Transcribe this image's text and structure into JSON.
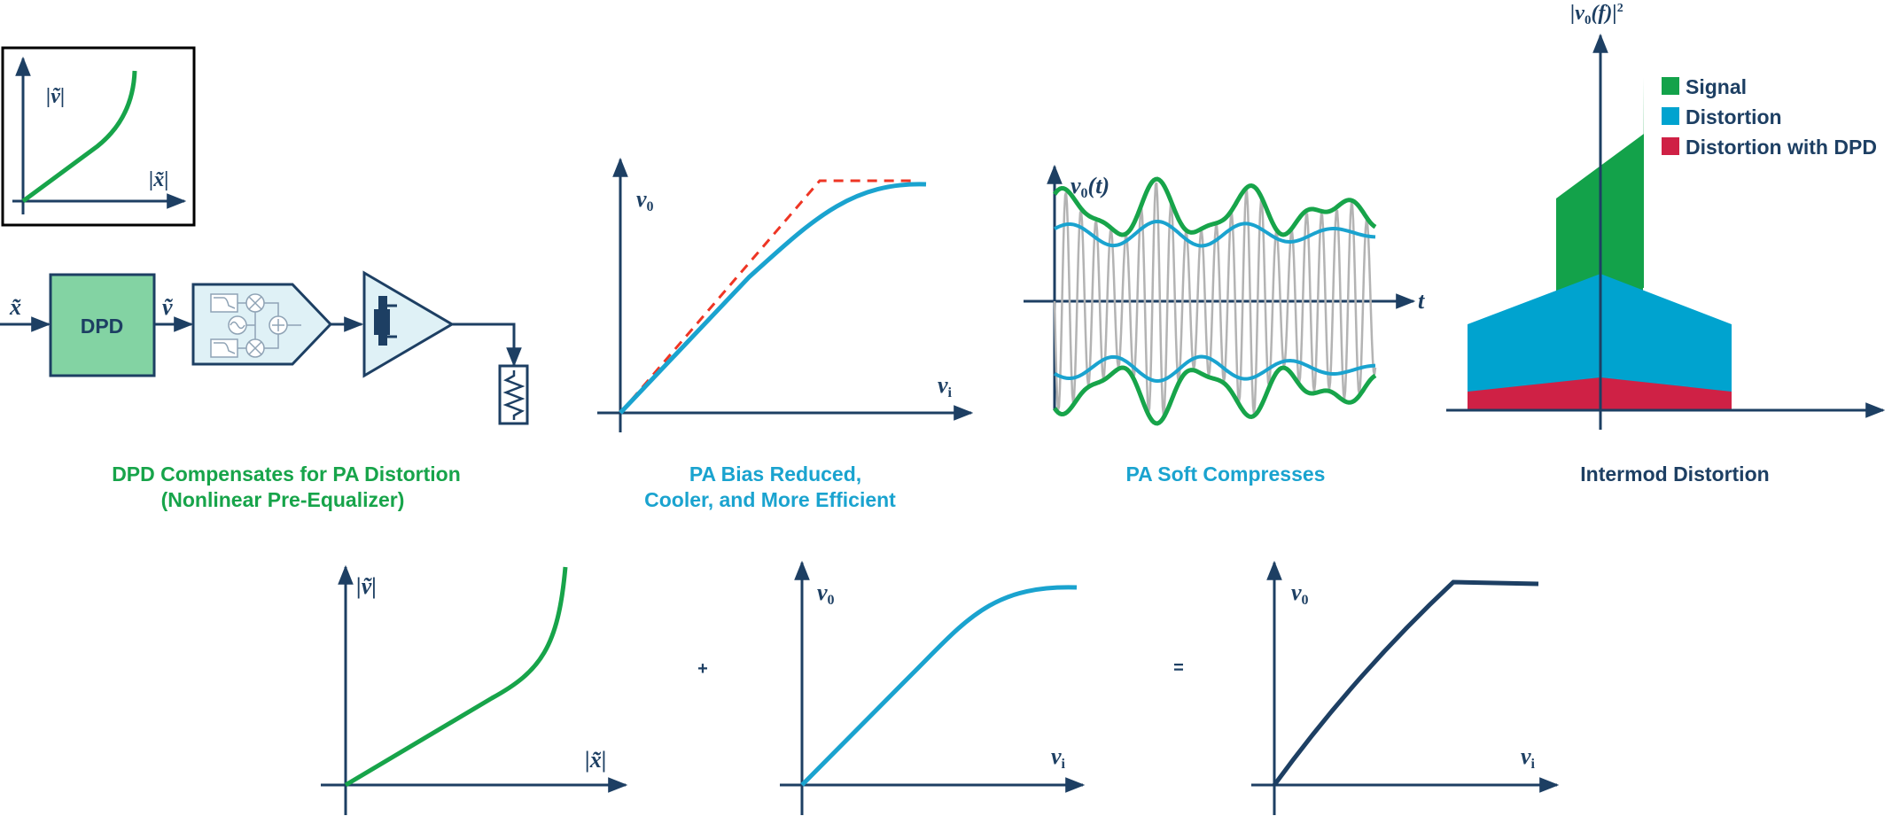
{
  "colors": {
    "navy": "#1d3f63",
    "green": "#17a44a",
    "blue": "#1aa3cf",
    "red_dashed": "#ee3524",
    "signal": "#13a24a",
    "distortion": "#00a3cf",
    "distortion_dpd": "#cf2145",
    "dpd_block": "#83d3a3",
    "light_block": "#dff1f6",
    "gray_wave": "#b3b3b3"
  },
  "inset": {
    "y_label": "|ṽ|",
    "x_label": "|x̃|"
  },
  "block_diagram": {
    "input_label": "x̃",
    "dpd_label": "DPD",
    "output_label": "ṽ",
    "icons": [
      "modulator-icon",
      "amplifier-icon",
      "resistor-icon"
    ]
  },
  "captions": {
    "dpd_line1": "DPD Compensates for PA Distortion",
    "dpd_line2": "(Nonlinear Pre-Equalizer)",
    "bias_line1": "PA Bias Reduced,",
    "bias_line2": "Cooler, and More Efficient",
    "soft": "PA Soft Compresses",
    "intermod": "Intermod Distortion"
  },
  "pa_transfer": {
    "y_label": "v",
    "y_sub": "0",
    "x_label": "v",
    "x_sub": "i"
  },
  "time_plot": {
    "y_label": "v",
    "y_sub": "0",
    "y_arg": "(t)",
    "x_label": "t"
  },
  "spectrum": {
    "y_label": "|v",
    "y_sub": "0",
    "y_arg": "(f)|",
    "y_sup": "2",
    "legend": [
      {
        "label": "Signal",
        "color": "#13a24a"
      },
      {
        "label": "Distortion",
        "color": "#00a3cf"
      },
      {
        "label": "Distortion with DPD",
        "color": "#cf2145"
      }
    ]
  },
  "bottom": {
    "plot1": {
      "y_label": "|ṽ|",
      "x_label": "|x̃|"
    },
    "plus": "+",
    "plot2": {
      "y_label": "v",
      "y_sub": "0",
      "x_label": "v",
      "x_sub": "i"
    },
    "equals": "=",
    "plot3": {
      "y_label": "v",
      "y_sub": "0",
      "x_label": "v",
      "x_sub": "i"
    }
  }
}
